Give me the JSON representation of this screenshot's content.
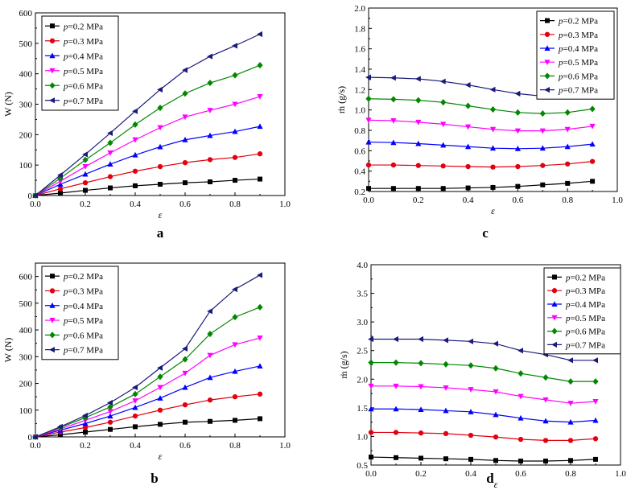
{
  "legend_prefix": "p",
  "legend_labels": [
    "=0.2 MPa",
    "=0.3 MPa",
    "=0.4 MPa",
    "=0.5 MPa",
    "=0.6 MPa",
    "=0.7 MPa"
  ],
  "series_colors": [
    "#000000",
    "#e3000f",
    "#0000ff",
    "#ff00ff",
    "#008800",
    "#1a1a7a"
  ],
  "series_markers": [
    "square",
    "circle",
    "triangle-up",
    "triangle-down",
    "diamond",
    "triangle-left"
  ],
  "chart_data": [
    {
      "id": "a",
      "type": "line",
      "panel_label": "a",
      "xlabel": "ε",
      "ylabel": "W (N)",
      "xlim": [
        0,
        1.0
      ],
      "ylim": [
        0,
        600
      ],
      "xticks": [
        0.0,
        0.2,
        0.4,
        0.6,
        0.8,
        1.0
      ],
      "xtick_labels": [
        "0.0",
        "0.2",
        "0.4",
        "0.6",
        "0.8",
        "1.0"
      ],
      "yticks": [
        0,
        100,
        200,
        300,
        400,
        500,
        600
      ],
      "ytick_labels": [
        "0",
        "100",
        "200",
        "300",
        "400",
        "500",
        "600"
      ],
      "legend_position": "top-left",
      "x": [
        0,
        0.1,
        0.2,
        0.3,
        0.4,
        0.5,
        0.6,
        0.7,
        0.8,
        0.9
      ],
      "series": [
        {
          "name": "p=0.2 MPa",
          "values": [
            0,
            8,
            17,
            25,
            32,
            37,
            42,
            45,
            50,
            54
          ]
        },
        {
          "name": "p=0.3 MPa",
          "values": [
            0,
            22,
            42,
            62,
            80,
            95,
            108,
            118,
            125,
            137
          ]
        },
        {
          "name": "p=0.4 MPa",
          "values": [
            0,
            37,
            70,
            103,
            133,
            160,
            183,
            197,
            210,
            227
          ]
        },
        {
          "name": "p=0.5 MPa",
          "values": [
            0,
            47,
            95,
            140,
            183,
            223,
            258,
            280,
            300,
            325
          ]
        },
        {
          "name": "p=0.6 MPa",
          "values": [
            0,
            57,
            117,
            173,
            233,
            288,
            335,
            370,
            395,
            428
          ]
        },
        {
          "name": "p=0.7 MPa",
          "values": [
            0,
            67,
            135,
            205,
            277,
            348,
            412,
            457,
            492,
            530
          ]
        }
      ]
    },
    {
      "id": "c",
      "type": "line",
      "panel_label": "c",
      "xlabel": "ε",
      "ylabel": "ṁ (g/s)",
      "xlim": [
        0,
        1.0
      ],
      "ylim": [
        0.2,
        2.0
      ],
      "xticks": [
        0.0,
        0.2,
        0.4,
        0.6,
        0.8,
        1.0
      ],
      "xtick_labels": [
        "0.0",
        "0.2",
        "0.4",
        "0.6",
        "0.8",
        "1.0"
      ],
      "yticks": [
        0.2,
        0.4,
        0.6,
        0.8,
        1.0,
        1.2,
        1.4,
        1.6,
        1.8,
        2.0
      ],
      "ytick_labels": [
        "0.2",
        "0.4",
        "0.6",
        "0.8",
        "1.0",
        "1.2",
        "1.4",
        "1.6",
        "1.8",
        "2.0"
      ],
      "legend_position": "top-right",
      "x": [
        0,
        0.1,
        0.2,
        0.3,
        0.4,
        0.5,
        0.6,
        0.7,
        0.8,
        0.9
      ],
      "series": [
        {
          "name": "p=0.2 MPa",
          "values": [
            0.23,
            0.23,
            0.23,
            0.23,
            0.235,
            0.24,
            0.25,
            0.265,
            0.28,
            0.3
          ]
        },
        {
          "name": "p=0.3 MPa",
          "values": [
            0.46,
            0.46,
            0.455,
            0.45,
            0.445,
            0.44,
            0.445,
            0.455,
            0.47,
            0.495
          ]
        },
        {
          "name": "p=0.4 MPa",
          "values": [
            0.685,
            0.68,
            0.67,
            0.655,
            0.64,
            0.625,
            0.62,
            0.625,
            0.64,
            0.665
          ]
        },
        {
          "name": "p=0.5 MPa",
          "values": [
            0.9,
            0.895,
            0.88,
            0.86,
            0.835,
            0.81,
            0.795,
            0.795,
            0.81,
            0.84
          ]
        },
        {
          "name": "p=0.6 MPa",
          "values": [
            1.11,
            1.105,
            1.095,
            1.075,
            1.04,
            1.005,
            0.975,
            0.965,
            0.975,
            1.01
          ]
        },
        {
          "name": "p=0.7 MPa",
          "values": [
            1.32,
            1.315,
            1.305,
            1.28,
            1.245,
            1.2,
            1.16,
            1.135,
            1.145,
            1.18
          ]
        }
      ]
    },
    {
      "id": "b",
      "type": "line",
      "panel_label": "b",
      "xlabel": "ε",
      "ylabel": "W (N)",
      "xlim": [
        0,
        1.0
      ],
      "ylim": [
        0,
        650
      ],
      "xticks": [
        0.0,
        0.2,
        0.4,
        0.6,
        0.8,
        1.0
      ],
      "xtick_labels": [
        "0.0",
        "0.2",
        "0.4",
        "0.6",
        "0.8",
        "1.0"
      ],
      "yticks": [
        0,
        100,
        200,
        300,
        400,
        500,
        600
      ],
      "ytick_labels": [
        "0",
        "100",
        "200",
        "300",
        "400",
        "500",
        "600"
      ],
      "legend_position": "top-left",
      "x": [
        0,
        0.1,
        0.2,
        0.3,
        0.4,
        0.5,
        0.6,
        0.7,
        0.8,
        0.9
      ],
      "series": [
        {
          "name": "p=0.2 MPa",
          "values": [
            0,
            8,
            18,
            28,
            38,
            47,
            55,
            58,
            62,
            68
          ]
        },
        {
          "name": "p=0.3 MPa",
          "values": [
            0,
            18,
            35,
            55,
            78,
            100,
            120,
            138,
            150,
            160
          ]
        },
        {
          "name": "p=0.4 MPa",
          "values": [
            0,
            25,
            50,
            78,
            110,
            145,
            185,
            222,
            245,
            265
          ]
        },
        {
          "name": "p=0.5 MPa",
          "values": [
            0,
            30,
            62,
            95,
            135,
            185,
            238,
            305,
            345,
            370
          ]
        },
        {
          "name": "p=0.6 MPa",
          "values": [
            0,
            35,
            72,
            112,
            160,
            225,
            290,
            385,
            448,
            485
          ]
        },
        {
          "name": "p=0.7 MPa",
          "values": [
            0,
            38,
            80,
            128,
            185,
            258,
            330,
            470,
            552,
            605
          ]
        }
      ]
    },
    {
      "id": "d",
      "type": "line",
      "panel_label": "d",
      "xlabel": "ε",
      "ylabel": "ṁ (g/s)",
      "xlim": [
        0,
        1.0
      ],
      "ylim": [
        0.5,
        4.0
      ],
      "xticks": [
        0.0,
        0.2,
        0.4,
        0.6,
        0.8,
        1.0
      ],
      "xtick_labels": [
        "0.0",
        "0.2",
        "0.4",
        "0.6",
        "0.8",
        "1.0"
      ],
      "yticks": [
        0.5,
        1.0,
        1.5,
        2.0,
        2.5,
        3.0,
        3.5,
        4.0
      ],
      "ytick_labels": [
        "0.5",
        "1.0",
        "1.5",
        "2.0",
        "2.5",
        "3.0",
        "3.5",
        "4.0"
      ],
      "legend_position": "top-right",
      "x": [
        0,
        0.1,
        0.2,
        0.3,
        0.4,
        0.5,
        0.6,
        0.7,
        0.8,
        0.9
      ],
      "series": [
        {
          "name": "p=0.2 MPa",
          "values": [
            0.64,
            0.63,
            0.62,
            0.61,
            0.6,
            0.58,
            0.57,
            0.57,
            0.58,
            0.6
          ]
        },
        {
          "name": "p=0.3 MPa",
          "values": [
            1.07,
            1.07,
            1.06,
            1.05,
            1.02,
            0.99,
            0.95,
            0.93,
            0.93,
            0.96
          ]
        },
        {
          "name": "p=0.4 MPa",
          "values": [
            1.48,
            1.48,
            1.47,
            1.45,
            1.43,
            1.38,
            1.32,
            1.27,
            1.25,
            1.28
          ]
        },
        {
          "name": "p=0.5 MPa",
          "values": [
            1.88,
            1.88,
            1.87,
            1.85,
            1.82,
            1.78,
            1.7,
            1.64,
            1.58,
            1.61
          ]
        },
        {
          "name": "p=0.6 MPa",
          "values": [
            2.29,
            2.29,
            2.28,
            2.26,
            2.24,
            2.19,
            2.1,
            2.03,
            1.96,
            1.96
          ]
        },
        {
          "name": "p=0.7 MPa",
          "values": [
            2.7,
            2.7,
            2.7,
            2.68,
            2.66,
            2.62,
            2.5,
            2.43,
            2.33,
            2.33
          ]
        }
      ]
    }
  ]
}
